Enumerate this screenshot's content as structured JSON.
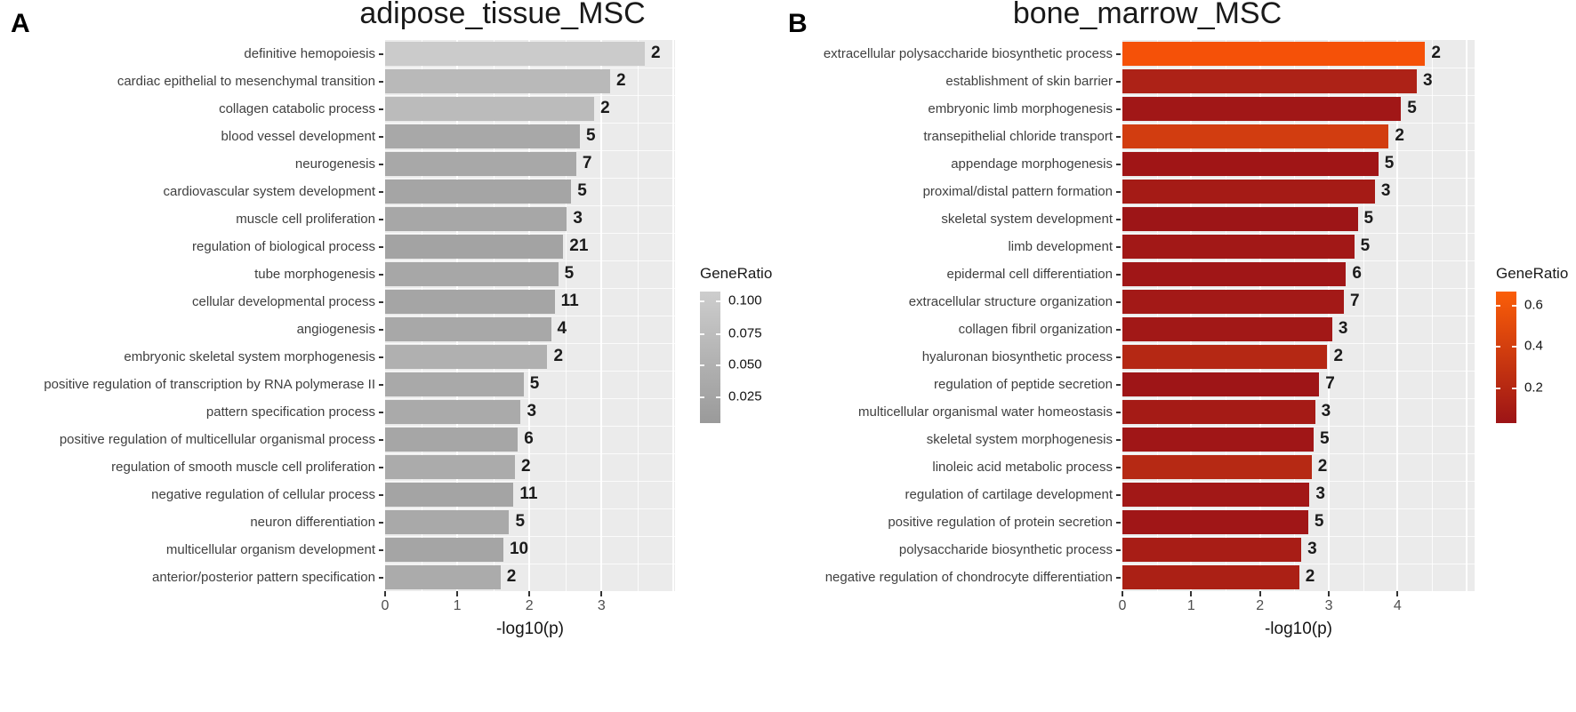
{
  "chart_data": [
    {
      "type": "bar",
      "orientation": "horizontal",
      "panel_letter": "A",
      "title": "adipose_tissue_MSC",
      "xlabel": "-log10(p)",
      "ylabel": "",
      "grid": true,
      "plot_background": "#ebebeb",
      "xlim": [
        0,
        4.02
      ],
      "xticks": [
        0,
        1,
        2,
        3
      ],
      "legend": {
        "title": "GeneRatio",
        "position": "right",
        "labels": [
          "0.100",
          "0.075",
          "0.050",
          "0.025"
        ],
        "label_offsets": [
          0.07,
          0.315,
          0.555,
          0.8
        ],
        "gradient_top": "#cdcdcd",
        "gradient_bottom": "#9a9a9a"
      },
      "categories": [
        "definitive hemopoiesis",
        "cardiac epithelial to mesenchymal transition",
        "collagen catabolic process",
        "blood vessel development",
        "neurogenesis",
        "cardiovascular system development",
        "muscle cell proliferation",
        "regulation of biological process",
        "tube morphogenesis",
        "cellular developmental process",
        "angiogenesis",
        "embryonic skeletal system morphogenesis",
        "positive regulation of transcription by RNA polymerase II",
        "pattern specification process",
        "positive regulation of multicellular organismal process",
        "regulation of smooth muscle cell proliferation",
        "negative regulation of cellular process",
        "neuron differentiation",
        "multicellular organism development",
        "anterior/posterior pattern specification"
      ],
      "values": [
        3.6,
        3.12,
        2.9,
        2.7,
        2.65,
        2.58,
        2.52,
        2.47,
        2.4,
        2.35,
        2.3,
        2.25,
        1.92,
        1.88,
        1.84,
        1.8,
        1.78,
        1.72,
        1.64,
        1.6
      ],
      "counts": [
        2,
        2,
        2,
        5,
        7,
        5,
        3,
        21,
        5,
        11,
        4,
        2,
        5,
        3,
        6,
        2,
        11,
        5,
        10,
        2
      ],
      "bar_colors": [
        "#cbcbcb",
        "#b9b9b9",
        "#bbbbbb",
        "#a8a8a8",
        "#a8a8a8",
        "#a5a5a5",
        "#a7a7a7",
        "#a3a3a3",
        "#a7a7a7",
        "#a5a5a5",
        "#a8a8a8",
        "#b0b0b0",
        "#a9a9a9",
        "#aaaaaa",
        "#a6a6a6",
        "#ababab",
        "#a4a4a4",
        "#a9a9a9",
        "#a5a5a5",
        "#ababab"
      ]
    },
    {
      "type": "bar",
      "orientation": "horizontal",
      "panel_letter": "B",
      "title": "bone_marrow_MSC",
      "xlabel": "-log10(p)",
      "ylabel": "",
      "grid": true,
      "plot_background": "#ebebeb",
      "xlim": [
        0,
        5.12
      ],
      "xticks": [
        0,
        1,
        2,
        3,
        4
      ],
      "legend": {
        "title": "GeneRatio",
        "position": "right",
        "labels": [
          "0.6",
          "0.4",
          "0.2"
        ],
        "label_offsets": [
          0.1,
          0.41,
          0.73
        ],
        "gradient_top": "#fb5e08",
        "gradient_bottom": "#9c1416"
      },
      "categories": [
        "extracellular polysaccharide biosynthetic process",
        "establishment of skin barrier",
        "embryonic limb morphogenesis",
        "transepithelial chloride transport",
        "appendage morphogenesis",
        "proximal/distal pattern formation",
        "skeletal system development",
        "limb development",
        "epidermal cell differentiation",
        "extracellular structure organization",
        "collagen fibril organization",
        "hyaluronan biosynthetic process",
        "regulation of peptide secretion",
        "multicellular organismal water homeostasis",
        "skeletal system morphogenesis",
        "linoleic acid metabolic process",
        "regulation of cartilage development",
        "positive regulation of protein secretion",
        "polysaccharide biosynthetic process",
        "negative regulation of chondrocyte differentiation"
      ],
      "values": [
        4.4,
        4.28,
        4.05,
        3.87,
        3.72,
        3.67,
        3.42,
        3.37,
        3.25,
        3.22,
        3.05,
        2.98,
        2.86,
        2.8,
        2.78,
        2.75,
        2.72,
        2.7,
        2.6,
        2.57
      ],
      "counts": [
        2,
        3,
        5,
        2,
        5,
        3,
        5,
        5,
        6,
        7,
        3,
        2,
        7,
        3,
        5,
        2,
        3,
        5,
        3,
        2
      ],
      "bar_colors": [
        "#f55108",
        "#ad2217",
        "#a11717",
        "#d23d10",
        "#a01516",
        "#a51b16",
        "#9d1517",
        "#a21817",
        "#a01617",
        "#a31917",
        "#a21817",
        "#b52814",
        "#9e1517",
        "#a51b16",
        "#a01617",
        "#b62914",
        "#a21817",
        "#a01617",
        "#a81d16",
        "#ab2015"
      ]
    }
  ]
}
